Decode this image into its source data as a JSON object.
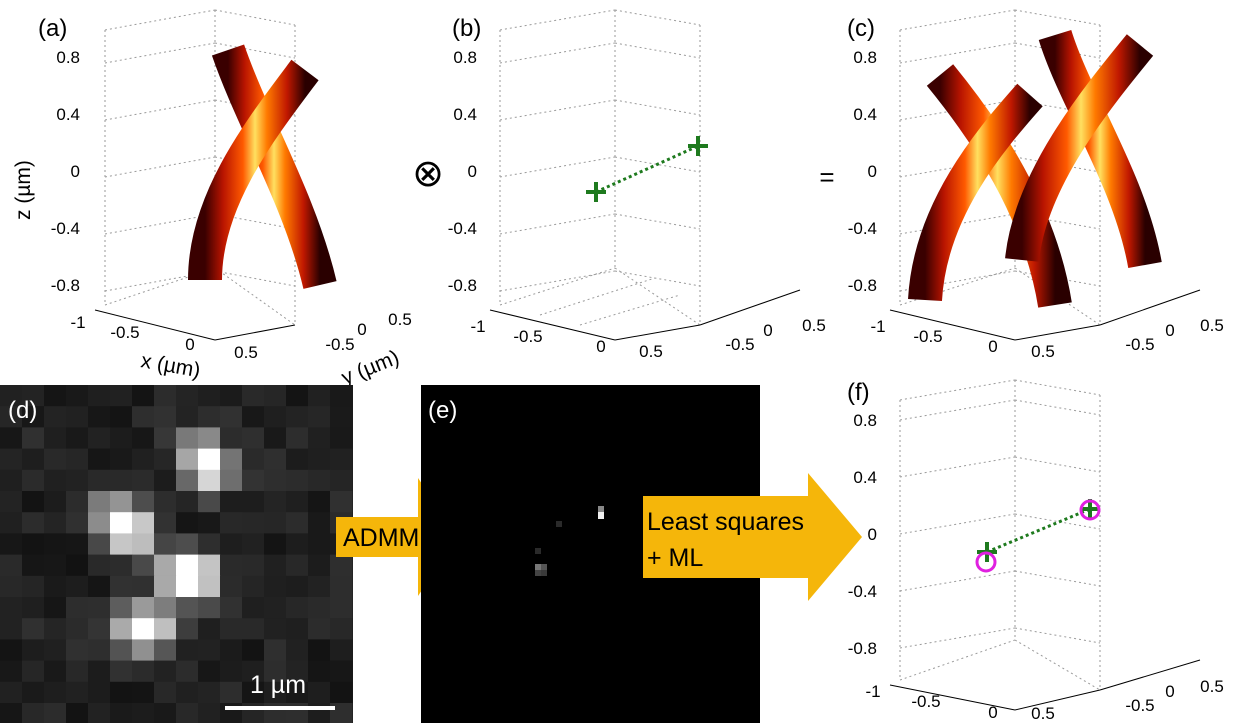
{
  "panels": {
    "a": {
      "label": "(a)"
    },
    "b": {
      "label": "(b)"
    },
    "c": {
      "label": "(c)"
    },
    "d": {
      "label": "(d)",
      "scalebar": "1 µm"
    },
    "e": {
      "label": "(e)"
    },
    "f": {
      "label": "(f)"
    }
  },
  "axes": {
    "z_ticks": [
      "0.8",
      "0.4",
      "0",
      "-0.4",
      "-0.8"
    ],
    "x_ticks": [
      "-1",
      "-0.5",
      "0",
      "0.5"
    ],
    "y_ticks": [
      "-0.5",
      "0",
      "0.5"
    ],
    "xlabel": "x (µm)",
    "ylabel": "y (µm)",
    "zlabel": "z (µm)"
  },
  "operators": {
    "convolve": "⊗",
    "equals": "="
  },
  "arrows": {
    "admm": "ADMM",
    "ls_line1": "Least squares",
    "ls_line2": "+ ML"
  },
  "colors": {
    "arrow": "#f5b60a",
    "marker_true": "#1e7a1e",
    "marker_est": "#e020e0",
    "grid": "#9a9a9a"
  }
}
